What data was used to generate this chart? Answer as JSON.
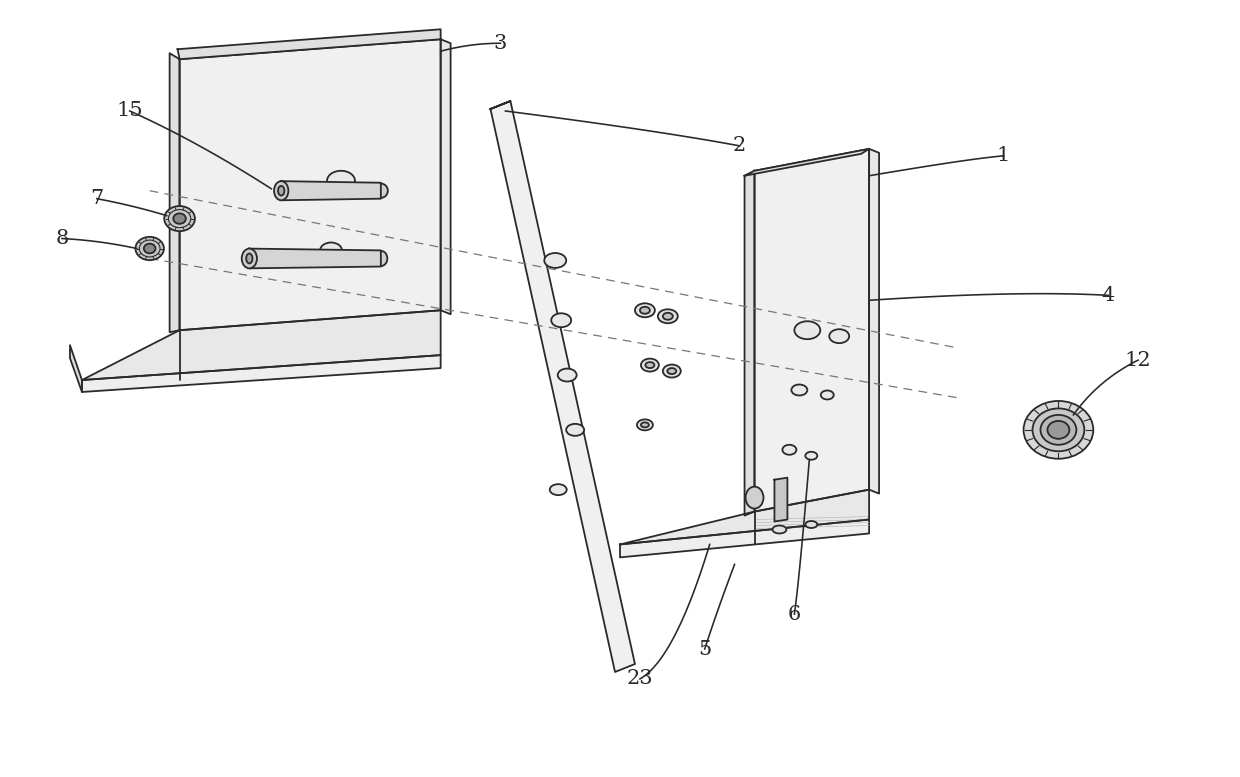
{
  "bg_color": "#ffffff",
  "line_color": "#2a2a2a",
  "line_width": 1.3,
  "figure_width": 12.4,
  "figure_height": 7.77,
  "label_fontsize": 15
}
